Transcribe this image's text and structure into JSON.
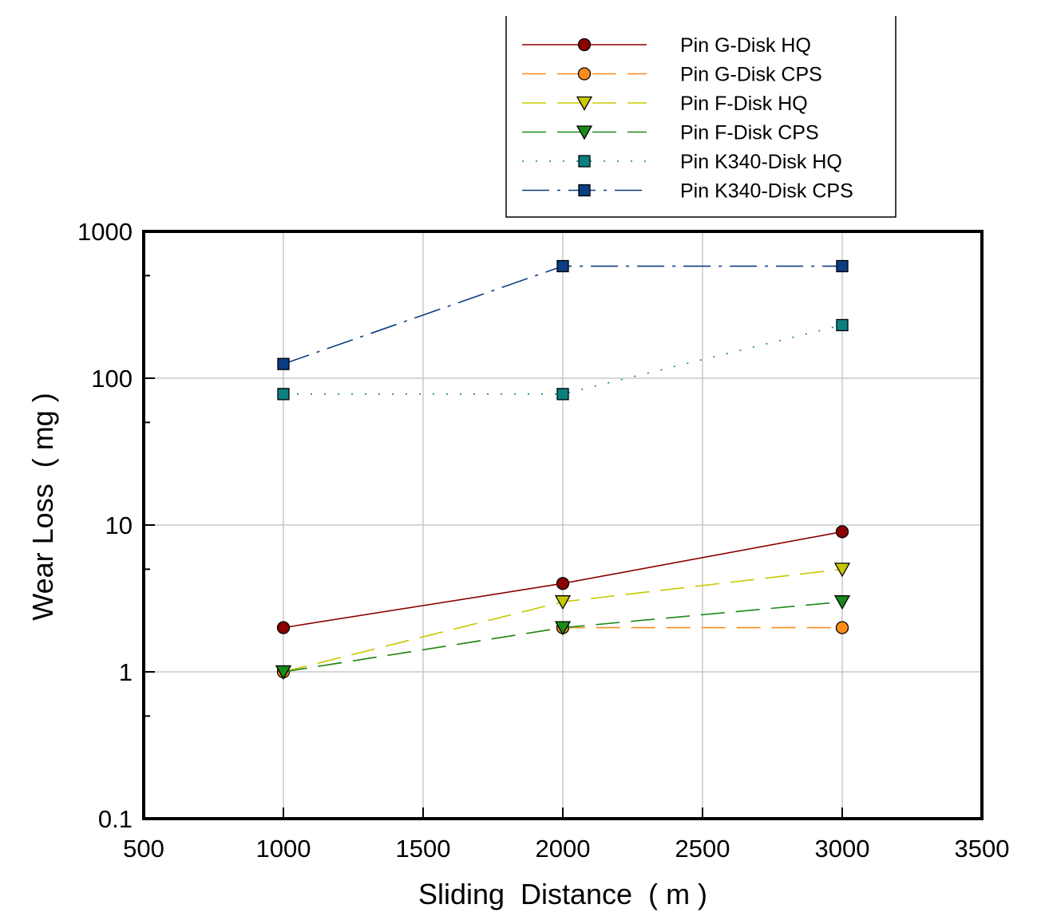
{
  "chart_data": {
    "type": "line",
    "title": "",
    "xlabel": "Sliding  Distance  ( m )",
    "ylabel": "Wear Loss  ( mg )",
    "xlim": [
      500,
      3500
    ],
    "ylim": [
      0.1,
      1000
    ],
    "yscale": "log",
    "x_ticks": [
      500,
      1000,
      1500,
      2000,
      2500,
      3000,
      3500
    ],
    "x_tick_labels": [
      "500",
      "1000",
      "1500",
      "2000",
      "2500",
      "3000",
      "3500"
    ],
    "y_ticks": [
      0.1,
      1,
      10,
      100,
      1000
    ],
    "y_tick_labels": [
      "0.1",
      "1",
      "10",
      "100",
      "1000"
    ],
    "grid": true,
    "legend_position": "top-right, outside plot",
    "x": [
      1000,
      2000,
      3000
    ],
    "series": [
      {
        "name": "Pin G-Disk HQ",
        "values": [
          2,
          4,
          9
        ],
        "color": "#8b0000",
        "marker": "circle",
        "linestyle": "solid"
      },
      {
        "name": "Pin G-Disk CPS",
        "values": [
          1,
          2,
          2
        ],
        "color": "#ff8c1a",
        "marker": "circle",
        "linestyle": "dashed"
      },
      {
        "name": "Pin F-Disk HQ",
        "values": [
          1,
          3,
          5
        ],
        "color": "#c8c800",
        "marker": "triangle-down",
        "linestyle": "dashed"
      },
      {
        "name": "Pin F-Disk CPS",
        "values": [
          1,
          2,
          3
        ],
        "color": "#1a8a1a",
        "marker": "triangle-down",
        "linestyle": "dashed"
      },
      {
        "name": "Pin K340-Disk HQ",
        "values": [
          78,
          78,
          230
        ],
        "color": "#0a8080",
        "marker": "square",
        "linestyle": "dotted"
      },
      {
        "name": "Pin K340-Disk CPS",
        "values": [
          125,
          580,
          580
        ],
        "color": "#0a3d82",
        "marker": "square",
        "linestyle": "dashdot"
      }
    ]
  }
}
